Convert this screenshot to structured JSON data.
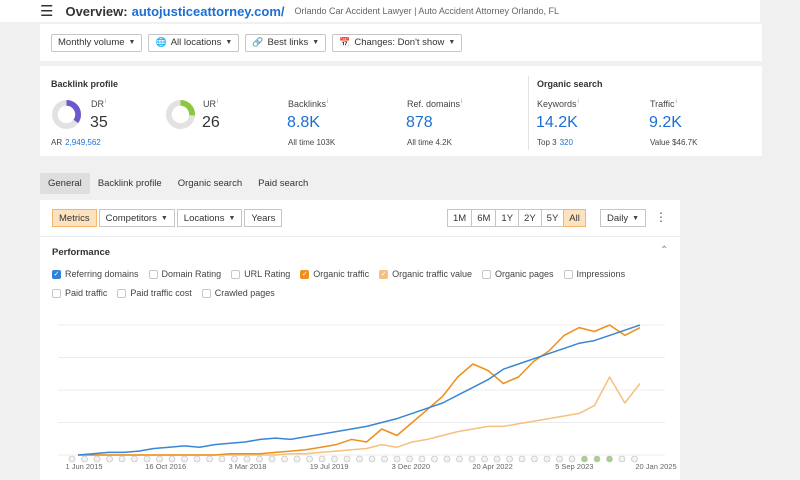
{
  "header": {
    "overview_label": "Overview:",
    "domain": "autojusticeattorney.com/",
    "site_title": "Orlando Car Accident Lawyer | Auto Accident Attorney Orlando, FL"
  },
  "filters": {
    "volume": "Monthly volume",
    "locations": "All locations",
    "links": "Best links",
    "changes": "Changes: Don't show"
  },
  "backlink_profile": {
    "heading": "Backlink profile",
    "dr": {
      "label": "DR",
      "value": "35",
      "fraction": 0.35,
      "color": "#6a5acd"
    },
    "ur": {
      "label": "UR",
      "value": "26",
      "fraction": 0.26,
      "color": "#8cc63f"
    },
    "ar": {
      "label": "AR",
      "value": "2,949,562"
    },
    "backlinks": {
      "label": "Backlinks",
      "value": "8.8K",
      "sub_label": "All time",
      "sub_value": "103K"
    },
    "ref_domains": {
      "label": "Ref. domains",
      "value": "878",
      "sub_label": "All time",
      "sub_value": "4.2K"
    }
  },
  "organic_search": {
    "heading": "Organic search",
    "keywords": {
      "label": "Keywords",
      "value": "14.2K",
      "sub_label": "Top 3",
      "sub_value": "320"
    },
    "traffic": {
      "label": "Traffic",
      "value": "9.2K",
      "sub_label": "Value",
      "sub_value": "$46.7K"
    }
  },
  "tabs": [
    "General",
    "Backlink profile",
    "Organic search",
    "Paid search"
  ],
  "chart_controls": {
    "metrics": "Metrics",
    "competitors": "Competitors",
    "locations": "Locations",
    "years": "Years",
    "ranges": [
      "1M",
      "6M",
      "1Y",
      "2Y",
      "5Y",
      "All"
    ],
    "active_range": "All",
    "granularity": "Daily"
  },
  "performance": {
    "title": "Performance",
    "checkboxes_row1": [
      {
        "label": "Referring domains",
        "checked": true,
        "color": "#2f84d8"
      },
      {
        "label": "Domain Rating",
        "checked": false
      },
      {
        "label": "URL Rating",
        "checked": false
      },
      {
        "label": "Organic traffic",
        "checked": true,
        "color": "#ef8f1c"
      },
      {
        "label": "Organic traffic value",
        "checked": true,
        "color": "#f6c07e"
      },
      {
        "label": "Organic pages",
        "checked": false
      },
      {
        "label": "Impressions",
        "checked": false
      }
    ],
    "checkboxes_row2": [
      {
        "label": "Paid traffic",
        "checked": false
      },
      {
        "label": "Paid traffic cost",
        "checked": false
      },
      {
        "label": "Crawled pages",
        "checked": false
      }
    ]
  },
  "chart_data": {
    "type": "line",
    "x_tick_labels": [
      "1 Jun 2015",
      "16 Oct 2016",
      "3 Mar 2018",
      "19 Jul 2019",
      "3 Dec 2020",
      "20 Apr 2022",
      "5 Sep 2023",
      "20 Jan 2025"
    ],
    "grid": true,
    "series": [
      {
        "name": "Referring domains",
        "color": "#3a86d4",
        "values": [
          0,
          1,
          2,
          2,
          3,
          5,
          6,
          7,
          6,
          8,
          9,
          10,
          12,
          13,
          12,
          14,
          16,
          18,
          20,
          22,
          25,
          28,
          32,
          36,
          40,
          46,
          52,
          58,
          66,
          70,
          74,
          78,
          82,
          86,
          88,
          92,
          96,
          100
        ]
      },
      {
        "name": "Organic traffic",
        "color": "#ef8f1c",
        "values": [
          0,
          0,
          0,
          0,
          0,
          0,
          0,
          0,
          0,
          0,
          1,
          1,
          1,
          2,
          3,
          4,
          6,
          8,
          12,
          10,
          20,
          15,
          25,
          35,
          45,
          60,
          70,
          65,
          55,
          60,
          72,
          80,
          92,
          98,
          95,
          100,
          92,
          98
        ]
      },
      {
        "name": "Organic traffic value",
        "color": "#f6c07e",
        "values": [
          0,
          0,
          0,
          0,
          0,
          0,
          0,
          0,
          0,
          0,
          0,
          0,
          0,
          0,
          1,
          1,
          2,
          3,
          4,
          5,
          8,
          6,
          10,
          12,
          15,
          18,
          20,
          22,
          22,
          24,
          26,
          28,
          30,
          32,
          38,
          60,
          40,
          55
        ]
      }
    ]
  }
}
